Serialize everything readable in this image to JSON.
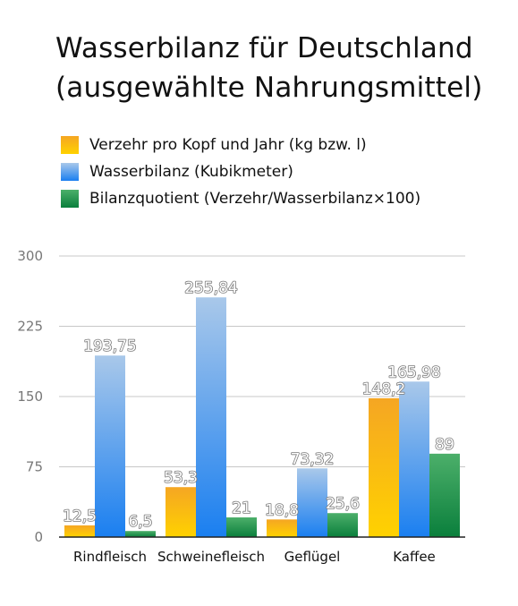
{
  "chart_data": {
    "type": "bar",
    "title": "Wasserbilanz für Deutschland (ausgewählte Nahrungsmittel)",
    "title_lines": [
      "Wasserbilanz für Deutschland",
      "(ausgewählte Nahrungsmittel)"
    ],
    "categories": [
      "Rindfleisch",
      "Schweinefleisch",
      "Geflügel",
      "Kaffee"
    ],
    "series": [
      {
        "name": "Verzehr pro Kopf und Jahr (kg bzw. l)",
        "values": [
          12.5,
          53.3,
          18.8,
          148.2
        ],
        "labels": [
          "12,5",
          "53,3",
          "18,8",
          "148,2"
        ],
        "color_top": "#f5a623",
        "color_bottom": "#ffd200",
        "legend_color": "#f7b21f"
      },
      {
        "name": "Wasserbilanz (Kubikmeter)",
        "values": [
          193.75,
          255.84,
          73.32,
          165.98
        ],
        "labels": [
          "193,75",
          "255,84",
          "73,32",
          "165,98"
        ],
        "color_top": "#a9c8ea",
        "color_bottom": "#1a7ff0",
        "legend_color": "#5aa0e8"
      },
      {
        "name": "Bilanzquotient (Verzehr/Wasserbilanz×100)",
        "values": [
          6.5,
          21,
          25.6,
          89
        ],
        "labels": [
          "6,5",
          "21",
          "25,6",
          "89"
        ],
        "color_top": "#4caf6a",
        "color_bottom": "#0a7f3c",
        "legend_color": "#1f9a4e"
      }
    ],
    "y_ticks": [
      0,
      75,
      150,
      225,
      300
    ],
    "ylim": [
      0,
      300
    ],
    "xlabel": "",
    "ylabel": "",
    "grid": true,
    "legend_position": "top-left"
  }
}
